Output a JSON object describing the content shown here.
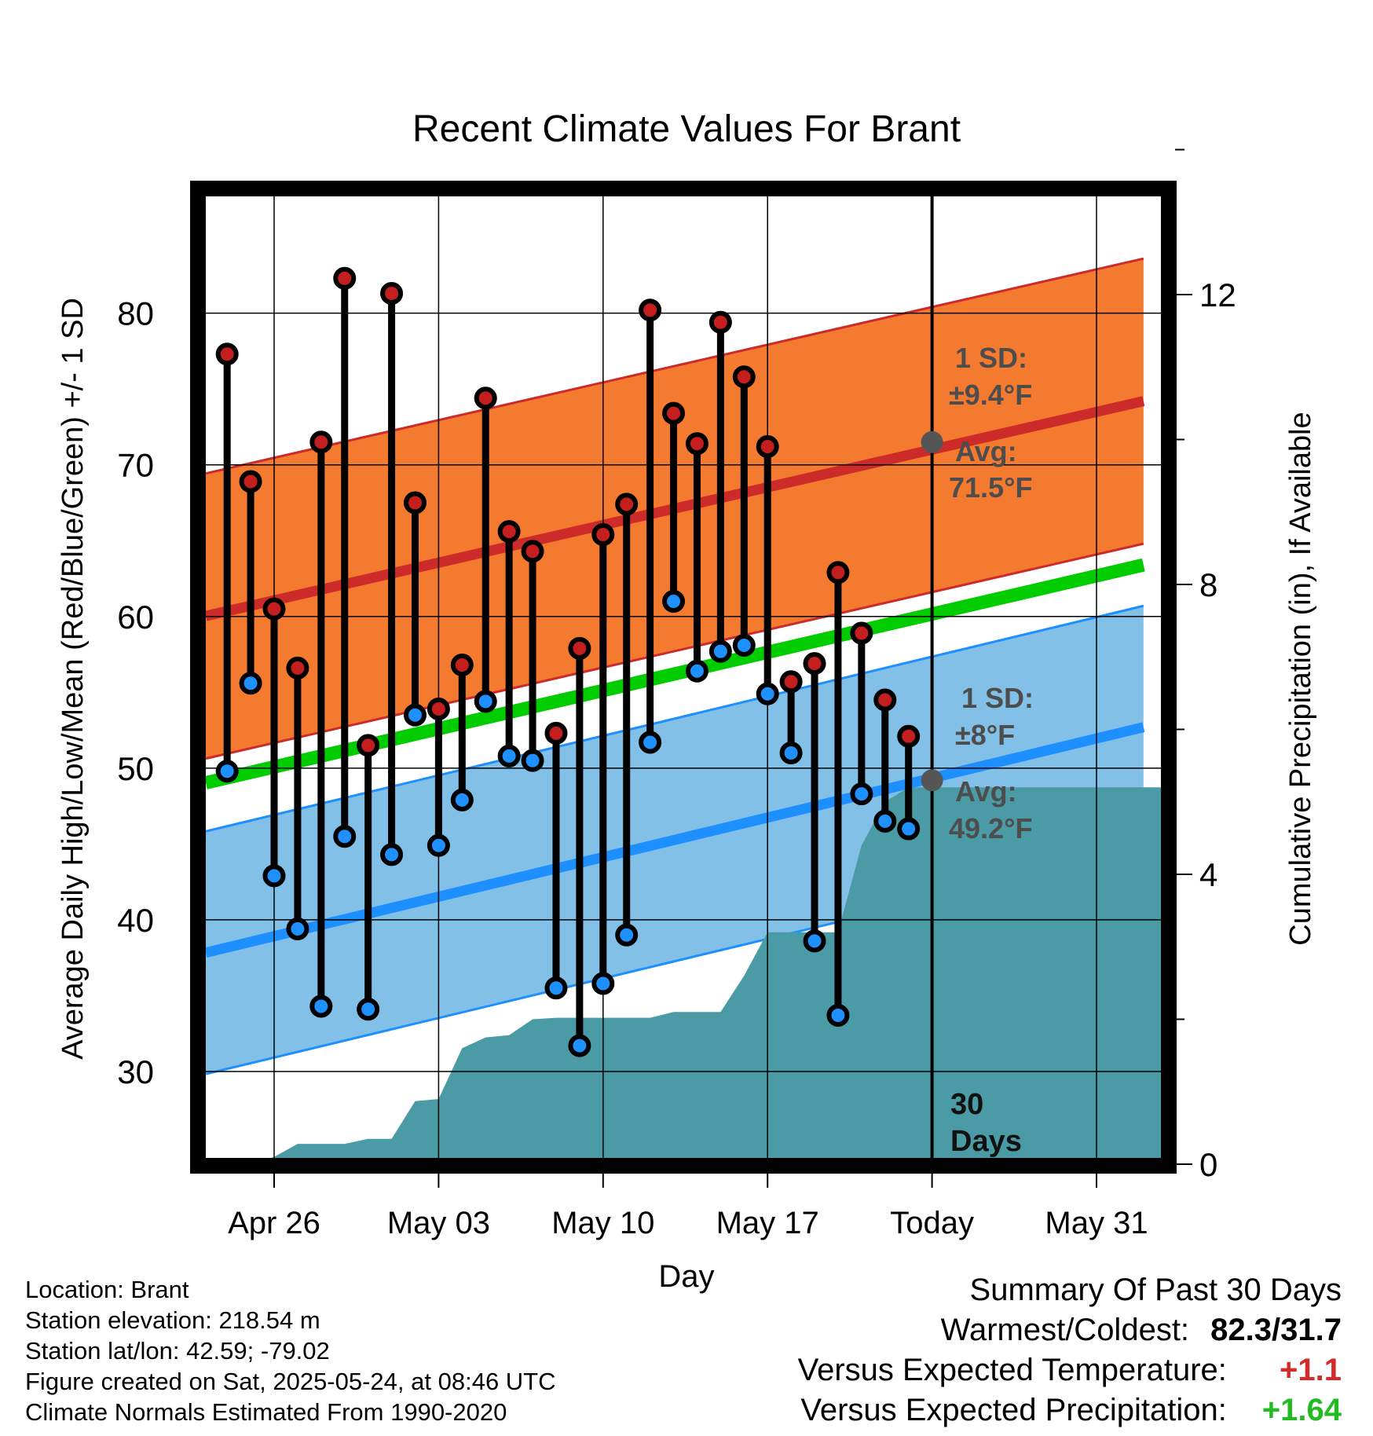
{
  "title": "Recent Climate Values For Brant",
  "chart_data": {
    "type": "line",
    "title": "Recent Climate Values For Brant",
    "xlabel": "Day",
    "ylabel": "Average Daily High/Low/Mean (Red/Blue/Green) +/- 1 SD",
    "y2label": "Cumulative Precipitation (in), If Available",
    "x_ticks": [
      "Apr 26",
      "May 03",
      "May 10",
      "May 17",
      "Today",
      "May 31"
    ],
    "y_ticks": [
      30,
      40,
      50,
      60,
      70,
      80
    ],
    "y2_ticks": [
      0,
      4,
      8,
      12
    ],
    "ylim": [
      24.3,
      87.7
    ],
    "y2lim": [
      0,
      25
    ],
    "grid": true,
    "dates": [
      "Apr 24",
      "Apr 25",
      "Apr 26",
      "Apr 27",
      "Apr 28",
      "Apr 29",
      "Apr 30",
      "May 01",
      "May 02",
      "May 03",
      "May 04",
      "May 05",
      "May 06",
      "May 07",
      "May 08",
      "May 09",
      "May 10",
      "May 11",
      "May 12",
      "May 13",
      "May 14",
      "May 15",
      "May 16",
      "May 17",
      "May 18",
      "May 19",
      "May 20",
      "May 21",
      "May 22",
      "May 23"
    ],
    "series": [
      {
        "name": "High",
        "color": "#c41e1e",
        "values": [
          77.3,
          68.9,
          60.5,
          56.6,
          71.5,
          82.3,
          51.5,
          81.3,
          67.5,
          53.9,
          56.8,
          74.4,
          65.6,
          64.3,
          52.3,
          57.9,
          65.4,
          67.4,
          80.2,
          73.4,
          71.4,
          79.4,
          75.8,
          71.2,
          55.7,
          56.9,
          62.9,
          58.9,
          54.5,
          52.1
        ]
      },
      {
        "name": "Low",
        "color": "#1e90ff",
        "values": [
          49.8,
          55.6,
          42.9,
          39.4,
          34.3,
          45.5,
          34.1,
          44.3,
          53.5,
          44.9,
          47.9,
          54.4,
          50.8,
          50.5,
          35.5,
          31.7,
          35.8,
          39.0,
          51.7,
          61.0,
          56.4,
          57.7,
          58.1,
          54.9,
          51.0,
          38.6,
          33.7,
          48.3,
          46.5,
          46.0
        ]
      },
      {
        "name": "Precipitation",
        "color": "#4a9ba5",
        "values": [
          0.0,
          0.0,
          0.1,
          0.28,
          0.28,
          0.28,
          0.35,
          0.35,
          0.87,
          0.9,
          1.6,
          1.75,
          1.78,
          2.0,
          2.02,
          2.02,
          2.02,
          2.02,
          2.02,
          2.1,
          2.1,
          2.1,
          2.6,
          3.2,
          3.2,
          3.2,
          3.2,
          4.4,
          5.0,
          5.2
        ]
      }
    ],
    "normals": {
      "high_avg": [
        60.0,
        74.2
      ],
      "high_sd": 9.4,
      "low_avg": [
        37.8,
        52.7
      ],
      "low_sd": 8,
      "mean_avg": [
        49.0,
        63.4
      ],
      "normals_dates": [
        "Apr 23",
        "Jun 02"
      ]
    },
    "annotations": {
      "high_sd_label": "1 SD:",
      "high_sd_value": "±9.4°F",
      "high_avg_label": "Avg:",
      "high_avg_value": "71.5°F",
      "low_sd_label": "1 SD:",
      "low_sd_value": "±8°F",
      "low_avg_label": "Avg:",
      "low_avg_value": "49.2°F",
      "today_label_1": "30",
      "today_label_2": "Days",
      "today_high_avg": 71.5,
      "today_low_avg": 49.2
    },
    "colors": {
      "high_band": "#f47a30",
      "high_line": "#cd2a2a",
      "low_band": "#82c0e8",
      "low_line": "#1e8fff",
      "mean_line": "#00cc00",
      "precip": "#4a9ba5"
    }
  },
  "footer": {
    "location": "Location: Brant",
    "elevation": "Station elevation: 218.54 m",
    "latlon": "Station lat/lon: 42.59; -79.02",
    "created": "Figure created on Sat, 2025-05-24, at 08:46 UTC",
    "normals": "Climate Normals Estimated From 1990-2020"
  },
  "summary": {
    "title": "Summary Of Past 30 Days",
    "warm_cold_label": "Warmest/Coldest:",
    "warm_cold_value": "82.3/31.7",
    "temp_label": "Versus Expected Temperature:",
    "temp_value": "+1.1",
    "temp_color": "#d42a2a",
    "precip_label": "Versus Expected Precipitation:",
    "precip_value": "+1.64",
    "precip_color": "#22bb22"
  }
}
